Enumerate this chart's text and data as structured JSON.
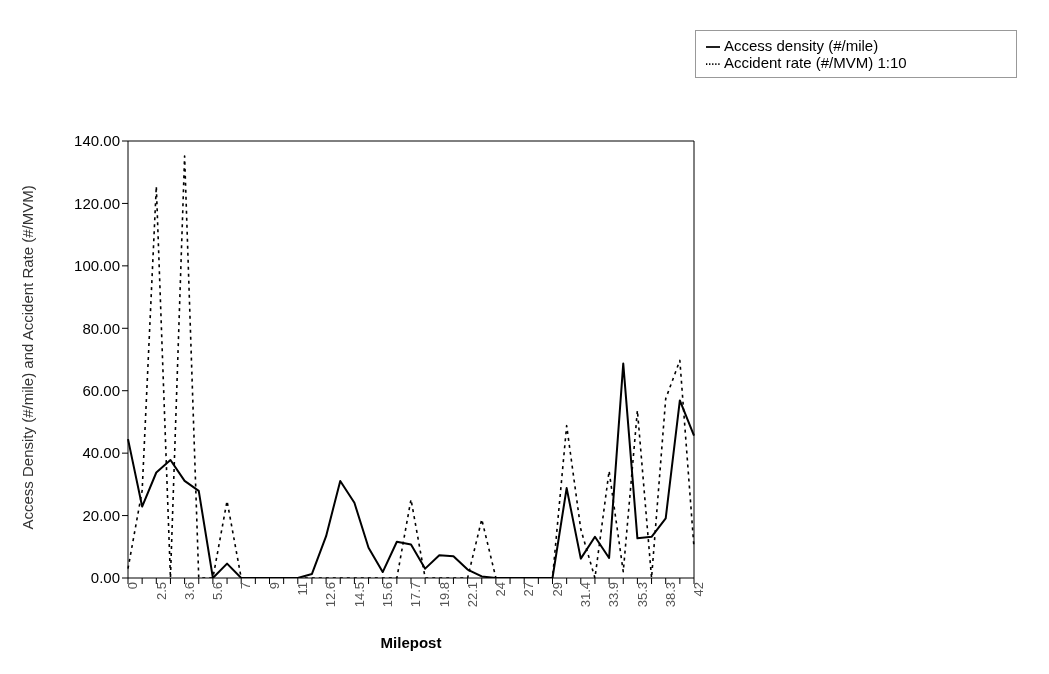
{
  "chart_data": {
    "type": "line",
    "xlabel": "Milepost",
    "ylabel": "Access Density (#/mile) and Accident Rate (#/MVM)",
    "categories": [
      "0",
      null,
      "2.5",
      null,
      "3.6",
      null,
      "5.6",
      null,
      "7",
      null,
      "9",
      null,
      "11",
      null,
      "12.6",
      null,
      "14.5",
      null,
      "15.6",
      null,
      "17.7",
      null,
      "19.8",
      null,
      "22.1",
      null,
      "24",
      null,
      "27",
      null,
      "29",
      null,
      "31.4",
      null,
      "33.9",
      null,
      "35.3",
      null,
      "38.3",
      null,
      "42"
    ],
    "series": [
      {
        "name": "Access density (#/mile)",
        "color": "#000000",
        "line_style": "solid",
        "values": [
          44.5,
          22.9,
          33.8,
          37.8,
          31.1,
          27.9,
          0,
          4.6,
          0,
          0,
          0,
          0,
          0,
          1.3,
          13.4,
          31.1,
          24.1,
          9.7,
          1.9,
          11.6,
          10.7,
          3.0,
          7.3,
          7.0,
          2.7,
          0.5,
          0,
          0,
          0,
          0,
          0,
          28.8,
          6.2,
          13.2,
          6.4,
          68.7,
          12.7,
          13.2,
          19.1,
          56.9,
          45.6
        ]
      },
      {
        "name": "Accident rate (#/MVM) 1:10",
        "color": "#000000",
        "line_style": "dotted",
        "values": [
          3,
          28,
          125.5,
          0,
          135.2,
          0,
          0,
          24.7,
          0,
          0,
          0,
          0,
          0,
          0,
          0,
          0,
          0,
          0,
          0,
          0,
          25.2,
          0,
          0,
          0,
          0,
          18.8,
          0,
          0,
          0,
          0,
          0,
          48.8,
          15.6,
          0,
          34.3,
          2,
          53.7,
          0,
          57.4,
          69.7,
          9.7
        ]
      }
    ],
    "ylim": [
      0,
      140
    ],
    "yticks": [
      {
        "value": 0,
        "label": "0.00"
      },
      {
        "value": 20,
        "label": "20.00"
      },
      {
        "value": 40,
        "label": "40.00"
      },
      {
        "value": 60,
        "label": "60.00"
      },
      {
        "value": 80,
        "label": "80.00"
      },
      {
        "value": 100,
        "label": "100.00"
      },
      {
        "value": 120,
        "label": "120.00"
      },
      {
        "value": 140,
        "label": "140.00"
      }
    ],
    "grid": false,
    "legend": "top right",
    "marker": "none"
  }
}
